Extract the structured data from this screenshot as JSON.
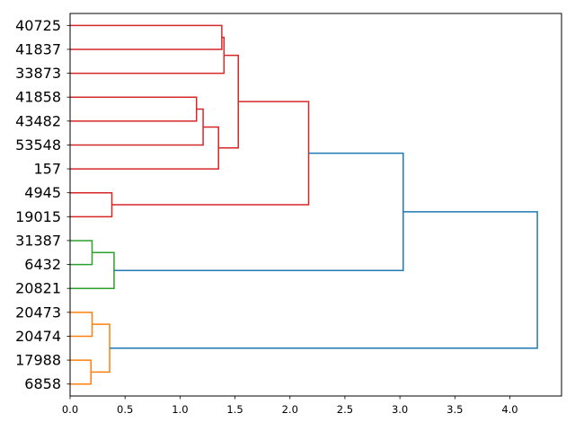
{
  "chart_data": {
    "type": "dendrogram",
    "title": "",
    "xlabel": "",
    "ylabel": "",
    "orientation": "right",
    "xlim": [
      0,
      4.47
    ],
    "xticks": [
      "0.0",
      "0.5",
      "1.0",
      "1.5",
      "2.0",
      "2.5",
      "3.0",
      "3.5",
      "4.0"
    ],
    "xtick_values": [
      0,
      0.5,
      1,
      1.5,
      2,
      2.5,
      3,
      3.5,
      4
    ],
    "leaves": [
      "40725",
      "41837",
      "33873",
      "41858",
      "43482",
      "53548",
      "157",
      "4945",
      "19015",
      "31387",
      "6432",
      "20821",
      "20473",
      "20474",
      "17988",
      "6858"
    ],
    "colors": {
      "red": "#d62728",
      "green": "#2ca02c",
      "orange": "#ff7f0e",
      "blue": "#1f77b4"
    },
    "merges": [
      {
        "left": 0,
        "right": 1,
        "distance": 1.38,
        "color": "red"
      },
      {
        "left": 16,
        "right": 2,
        "distance": 1.4,
        "color": "red"
      },
      {
        "left": 3,
        "right": 4,
        "distance": 1.15,
        "color": "red"
      },
      {
        "left": 18,
        "right": 5,
        "distance": 1.21,
        "color": "red"
      },
      {
        "left": 19,
        "right": 6,
        "distance": 1.35,
        "color": "red"
      },
      {
        "left": 17,
        "right": 20,
        "distance": 1.53,
        "color": "red"
      },
      {
        "left": 7,
        "right": 8,
        "distance": 0.38,
        "color": "red"
      },
      {
        "left": 21,
        "right": 22,
        "distance": 2.17,
        "color": "red"
      },
      {
        "left": 9,
        "right": 10,
        "distance": 0.2,
        "color": "green"
      },
      {
        "left": 24,
        "right": 11,
        "distance": 0.4,
        "color": "green"
      },
      {
        "left": 23,
        "right": 25,
        "distance": 3.03,
        "color": "blue"
      },
      {
        "left": 12,
        "right": 13,
        "distance": 0.2,
        "color": "orange"
      },
      {
        "left": 14,
        "right": 15,
        "distance": 0.19,
        "color": "orange"
      },
      {
        "left": 27,
        "right": 28,
        "distance": 0.36,
        "color": "orange"
      },
      {
        "left": 26,
        "right": 29,
        "distance": 4.25,
        "color": "blue"
      }
    ]
  }
}
